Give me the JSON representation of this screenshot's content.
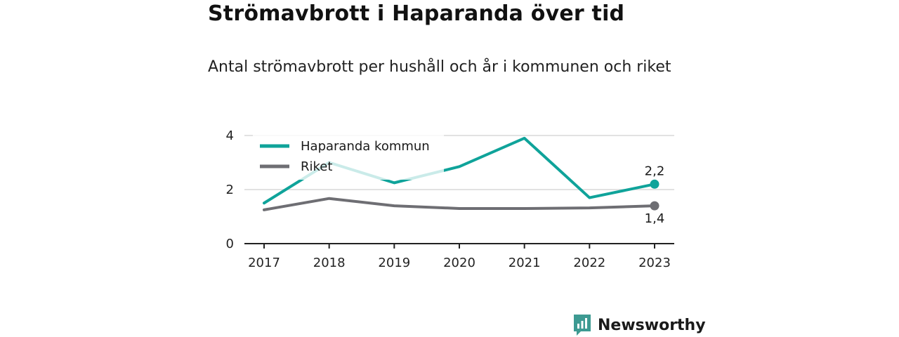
{
  "title": "Strömavbrott i Haparanda över tid",
  "subtitle": "Antal strömavbrott per hushåll och år i kommunen och riket",
  "brand": {
    "name": "Newsworthy",
    "color": "#3d9a92",
    "icon": "newsworthy-logo-icon"
  },
  "colors": {
    "haparanda": "#0fa39a",
    "riket": "#6e6e73"
  },
  "chart_data": {
    "type": "line",
    "categories": [
      "2017",
      "2018",
      "2019",
      "2020",
      "2021",
      "2022",
      "2023"
    ],
    "y_ticks": [
      "0",
      "2",
      "4"
    ],
    "ylim": [
      0,
      4
    ],
    "grid": true,
    "legend_position": "top-left",
    "series": [
      {
        "name": "Haparanda kommun",
        "key": "haparanda",
        "values": [
          1.5,
          3.0,
          2.25,
          2.85,
          3.9,
          1.7,
          2.2
        ],
        "end_label": "2,2"
      },
      {
        "name": "Riket",
        "key": "riket",
        "values": [
          1.25,
          1.67,
          1.4,
          1.3,
          1.3,
          1.32,
          1.4
        ],
        "end_label": "1,4"
      }
    ]
  }
}
